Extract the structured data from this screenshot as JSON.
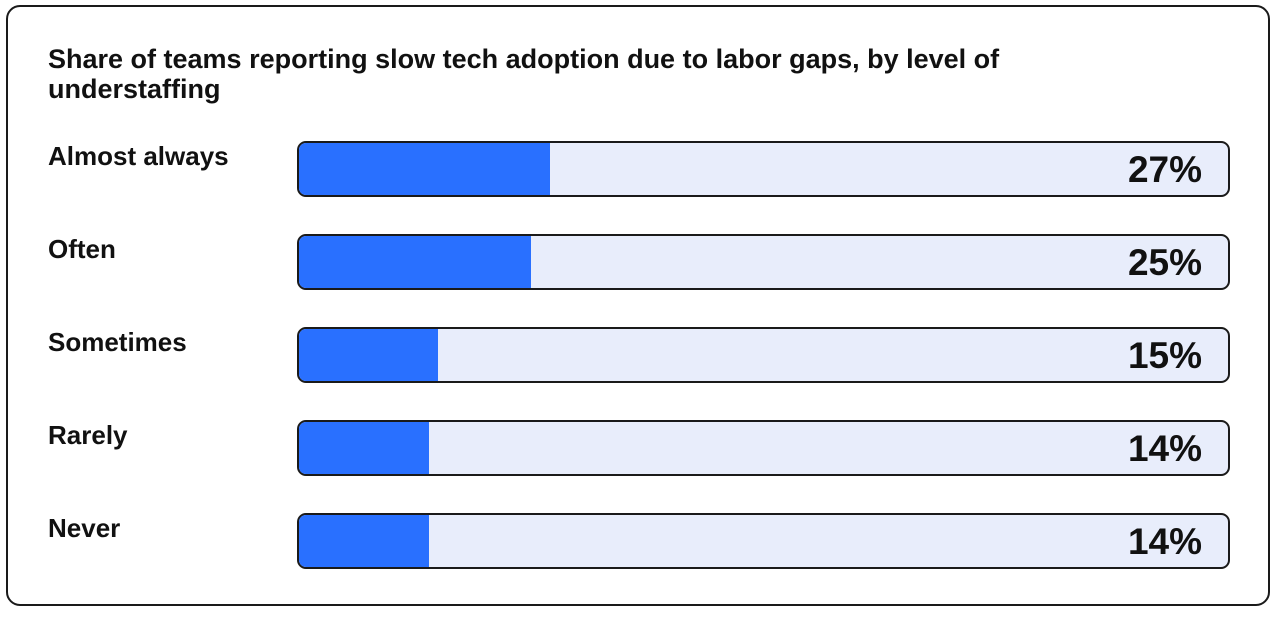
{
  "colors": {
    "fill": "#2970ff",
    "track": "#e8edfb",
    "border": "#1a1a1a",
    "text": "#111111"
  },
  "chart_data": {
    "type": "bar",
    "orientation": "horizontal",
    "title": "Share of teams reporting slow tech adoption due to labor gaps, by level of understaffing",
    "xlabel": "",
    "ylabel": "",
    "xlim": [
      0,
      100
    ],
    "grid": false,
    "categories": [
      "Almost always",
      "Often",
      "Sometimes",
      "Rarely",
      "Never"
    ],
    "values": [
      27,
      25,
      15,
      14,
      14
    ],
    "value_labels": [
      "27%",
      "25%",
      "15%",
      "14%",
      "14%"
    ]
  }
}
